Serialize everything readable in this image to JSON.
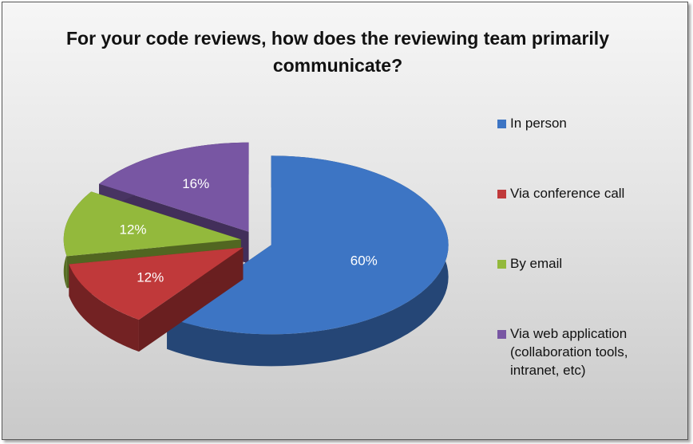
{
  "chart_data": {
    "type": "pie",
    "variant": "3d-exploded",
    "title": "For your code reviews, how does the reviewing team primarily communicate?",
    "categories": [
      "In person",
      "Via conference call",
      "By email",
      "Via web application (collaboration tools, intranet, etc)"
    ],
    "values": [
      60,
      12,
      12,
      16
    ],
    "data_labels": [
      "60%",
      "12%",
      "12%",
      "16%"
    ],
    "colors": [
      "#3d75c4",
      "#c0393a",
      "#93b93c",
      "#7856a3"
    ],
    "legend_position": "right"
  }
}
